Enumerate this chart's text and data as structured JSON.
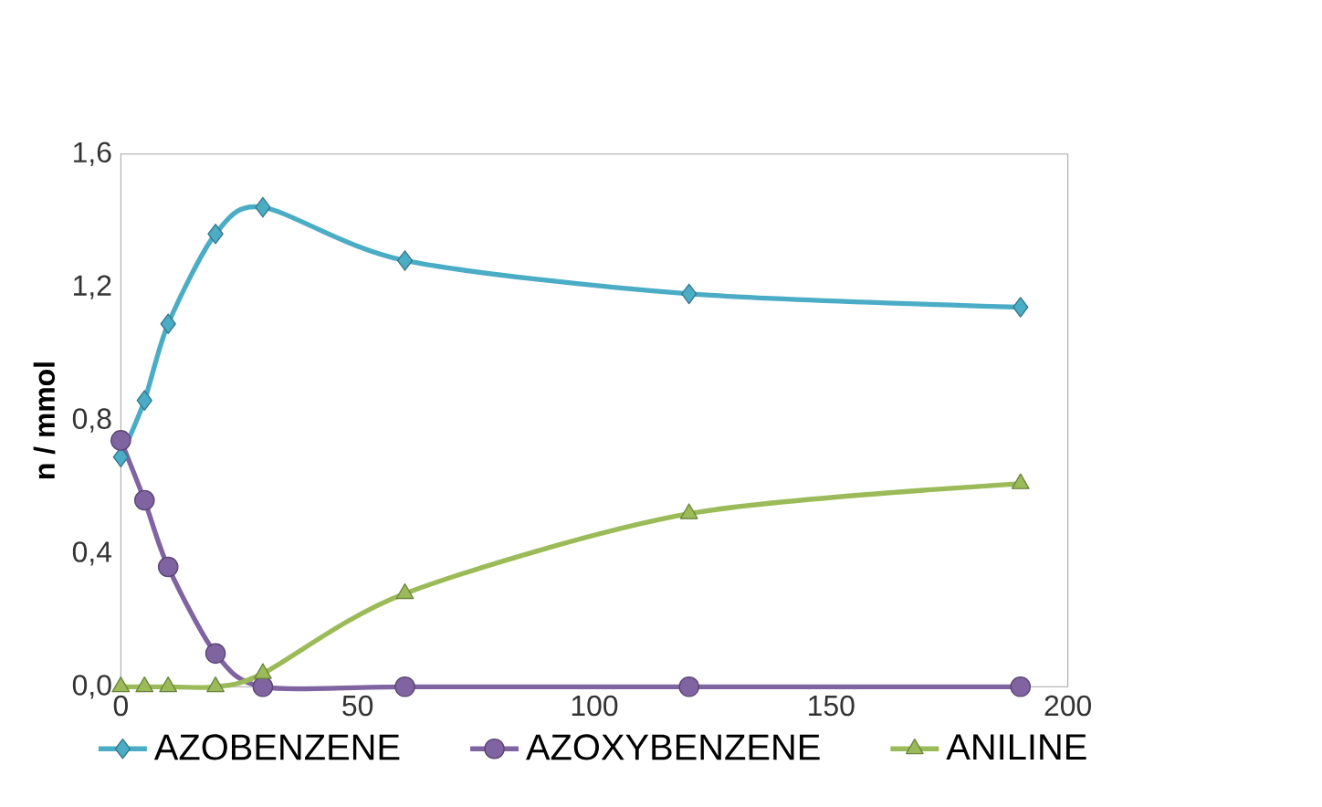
{
  "chart_data": {
    "type": "line",
    "ylabel": "n / mmol",
    "x": [
      0,
      5,
      10,
      20,
      30,
      60,
      120,
      190
    ],
    "series": [
      {
        "name": "AZOBENZENE",
        "color": "#4bacc6",
        "marker": "diamond",
        "values": [
          0.69,
          0.86,
          1.09,
          1.36,
          1.44,
          1.28,
          1.18,
          1.14
        ]
      },
      {
        "name": "AZOXYBENZENE",
        "color": "#8064a2",
        "marker": "circle",
        "values": [
          0.74,
          0.56,
          0.36,
          0.1,
          0.0,
          0.0,
          0.0,
          0.0
        ]
      },
      {
        "name": "ANILINE",
        "color": "#9bbb59",
        "marker": "triangle",
        "values": [
          0.0,
          0.0,
          0.0,
          0.0,
          0.04,
          0.28,
          0.52,
          0.61
        ]
      }
    ],
    "xlim": [
      0,
      200
    ],
    "ylim": [
      0,
      1.6
    ],
    "xticks": [
      0,
      50,
      100,
      150,
      200
    ],
    "yticks": [
      {
        "value": 0,
        "label": "0,0"
      },
      {
        "value": 0.4,
        "label": "0,4"
      },
      {
        "value": 0.8,
        "label": "0,8"
      },
      {
        "value": 1.2,
        "label": "1,2"
      },
      {
        "value": 1.6,
        "label": "1,6"
      }
    ],
    "grid": false,
    "legend": "bottom",
    "line_style": "solid"
  }
}
